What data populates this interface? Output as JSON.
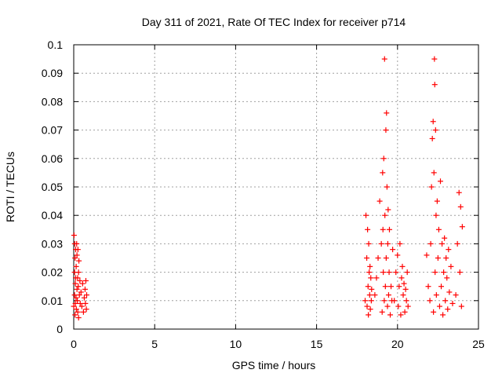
{
  "chart_data": {
    "type": "scatter",
    "title": "Day 311 of 2021, Rate Of TEC Index for receiver p714",
    "xlabel": "GPS time / hours",
    "ylabel": "ROTI / TECUs",
    "xlim": [
      0,
      25
    ],
    "ylim": [
      0,
      0.1
    ],
    "xticks": [
      "0",
      "5",
      "10",
      "15",
      "20",
      "25"
    ],
    "yticks": [
      "0",
      "0.01",
      "0.02",
      "0.03",
      "0.04",
      "0.05",
      "0.06",
      "0.07",
      "0.08",
      "0.09",
      "0.1"
    ],
    "grid": true,
    "marker": "+",
    "color": "#ff0000",
    "series": [
      {
        "x": [
          0.0,
          0.02,
          0.05,
          0.05,
          0.06,
          0.08,
          0.08,
          0.1,
          0.1,
          0.12,
          0.12,
          0.14,
          0.15,
          0.16,
          0.18,
          0.2,
          0.2,
          0.22,
          0.24,
          0.25,
          0.26,
          0.28,
          0.3,
          0.3,
          0.32,
          0.35,
          0.38,
          0.4,
          0.45,
          0.5,
          0.55,
          0.6,
          0.65,
          0.7,
          0.72,
          0.75,
          0.78,
          0.8,
          18.0,
          18.05,
          18.1,
          18.12,
          18.15,
          18.18,
          18.2,
          18.22,
          18.25,
          18.28,
          18.3,
          18.32,
          18.35,
          18.38,
          18.4,
          18.6,
          18.7,
          18.8,
          18.9,
          19.0,
          19.05,
          19.08,
          19.1,
          19.12,
          19.15,
          19.18,
          19.2,
          19.22,
          19.25,
          19.28,
          19.3,
          19.32,
          19.35,
          19.38,
          19.4,
          19.42,
          19.45,
          19.48,
          19.5,
          19.55,
          19.6,
          19.65,
          19.7,
          19.8,
          19.9,
          20.0,
          20.05,
          20.1,
          20.15,
          20.2,
          20.25,
          20.3,
          20.35,
          20.4,
          20.45,
          20.5,
          20.55,
          20.6,
          20.65,
          21.8,
          21.9,
          22.0,
          22.05,
          22.1,
          22.15,
          22.2,
          22.22,
          22.25,
          22.28,
          22.3,
          22.32,
          22.35,
          22.38,
          22.4,
          22.45,
          22.5,
          22.55,
          22.6,
          22.65,
          22.7,
          22.75,
          22.8,
          22.85,
          22.9,
          22.95,
          23.0,
          23.05,
          23.1,
          23.15,
          23.2,
          23.3,
          23.4,
          23.6,
          23.7,
          23.8,
          23.85,
          23.9,
          23.95,
          24.0
        ],
        "y": [
          0.008,
          0.033,
          0.02,
          0.012,
          0.03,
          0.005,
          0.025,
          0.016,
          0.009,
          0.028,
          0.018,
          0.011,
          0.022,
          0.007,
          0.03,
          0.014,
          0.026,
          0.01,
          0.018,
          0.006,
          0.028,
          0.015,
          0.02,
          0.004,
          0.024,
          0.012,
          0.017,
          0.009,
          0.013,
          0.008,
          0.016,
          0.006,
          0.011,
          0.014,
          0.009,
          0.017,
          0.007,
          0.012,
          0.01,
          0.04,
          0.025,
          0.008,
          0.035,
          0.015,
          0.005,
          0.03,
          0.02,
          0.012,
          0.022,
          0.007,
          0.018,
          0.01,
          0.014,
          0.012,
          0.018,
          0.025,
          0.045,
          0.03,
          0.006,
          0.055,
          0.035,
          0.02,
          0.06,
          0.01,
          0.095,
          0.04,
          0.015,
          0.07,
          0.025,
          0.076,
          0.05,
          0.008,
          0.03,
          0.042,
          0.012,
          0.02,
          0.035,
          0.005,
          0.015,
          0.01,
          0.028,
          0.01,
          0.02,
          0.026,
          0.008,
          0.015,
          0.03,
          0.005,
          0.018,
          0.022,
          0.012,
          0.016,
          0.006,
          0.014,
          0.01,
          0.02,
          0.008,
          0.026,
          0.015,
          0.01,
          0.03,
          0.05,
          0.067,
          0.073,
          0.006,
          0.055,
          0.095,
          0.086,
          0.02,
          0.07,
          0.04,
          0.012,
          0.045,
          0.025,
          0.035,
          0.008,
          0.052,
          0.015,
          0.03,
          0.005,
          0.02,
          0.032,
          0.01,
          0.025,
          0.018,
          0.007,
          0.028,
          0.013,
          0.022,
          0.009,
          0.012,
          0.03,
          0.048,
          0.02,
          0.043,
          0.008,
          0.036
        ]
      }
    ]
  }
}
